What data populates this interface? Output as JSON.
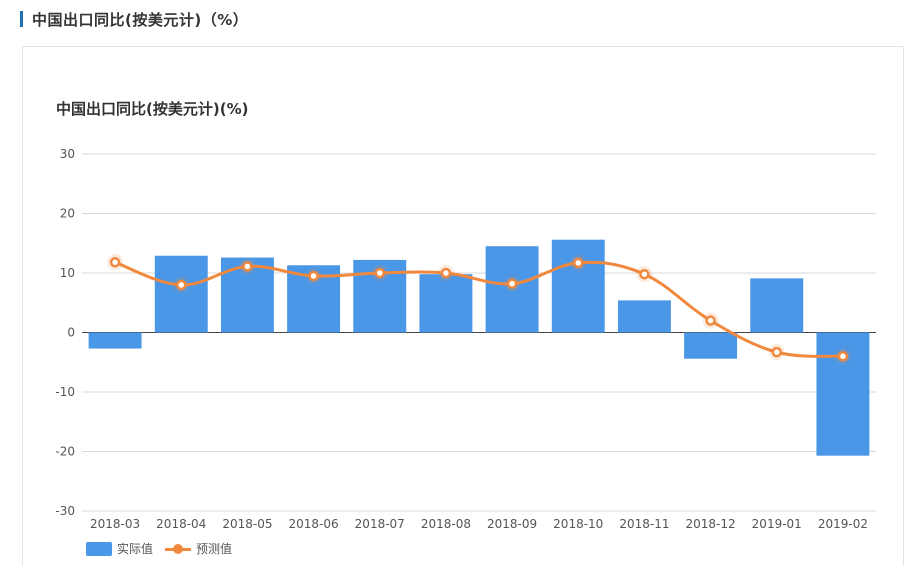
{
  "header": {
    "title": "中国出口同比(按美元计)（%）"
  },
  "chart_data": {
    "type": "bar",
    "title": "中国出口同比(按美元计)(%)",
    "categories": [
      "2018-03",
      "2018-04",
      "2018-05",
      "2018-06",
      "2018-07",
      "2018-08",
      "2018-09",
      "2018-10",
      "2018-11",
      "2018-12",
      "2019-01",
      "2019-02"
    ],
    "ylim": [
      -30,
      30
    ],
    "yticks": [
      30,
      20,
      10,
      0,
      -10,
      -20,
      -30
    ],
    "grid": true,
    "legend_position": "bottom-left",
    "series": [
      {
        "name": "实际值",
        "type": "bar",
        "color": "#4a97e8",
        "values": [
          -2.7,
          12.9,
          12.6,
          11.3,
          12.2,
          9.8,
          14.5,
          15.6,
          5.4,
          -4.4,
          9.1,
          -20.7
        ]
      },
      {
        "name": "预测值",
        "type": "line",
        "color": "#f0883e",
        "values": [
          11.8,
          8.0,
          11.1,
          9.5,
          10.0,
          10.0,
          8.2,
          11.7,
          9.8,
          2.0,
          -3.3,
          -4.0
        ]
      }
    ]
  },
  "legend": {
    "actual_label": "实际值",
    "forecast_label": "预测值"
  }
}
